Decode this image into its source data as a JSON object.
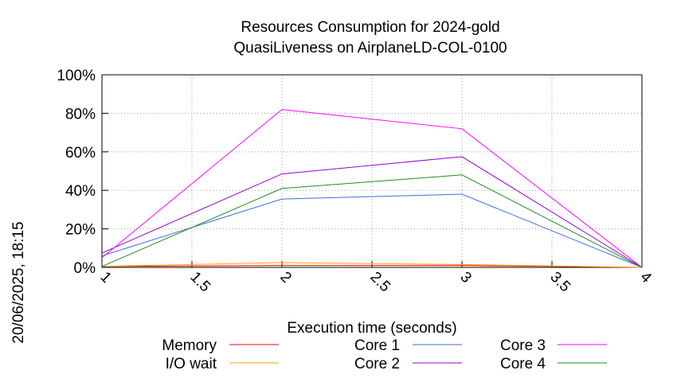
{
  "chart_data": {
    "type": "line",
    "title": "Resources Consumption for 2024-gold",
    "subtitle": "QuasiLiveness on AirplaneLD-COL-0100",
    "xlabel": "Execution time (seconds)",
    "ylabel": "",
    "side_label": "20/06/2025, 18:15",
    "xlim": [
      1,
      4
    ],
    "ylim": [
      0,
      100
    ],
    "x_ticks": [
      1,
      1.5,
      2,
      2.5,
      3,
      3.5,
      4
    ],
    "x_tick_labels": [
      "1",
      "1.5",
      "2",
      "2.5",
      "3",
      "3.5",
      "4"
    ],
    "y_ticks": [
      0,
      20,
      40,
      60,
      80,
      100
    ],
    "y_tick_labels": [
      "0%",
      "20%",
      "40%",
      "60%",
      "80%",
      "100%"
    ],
    "grid": true,
    "legend_position": "bottom",
    "x": [
      1,
      2,
      3,
      4
    ],
    "series": [
      {
        "name": "Memory",
        "color": "#ff0000",
        "values": [
          0.5,
          1.0,
          1.0,
          0
        ]
      },
      {
        "name": "I/O wait",
        "color": "#ffa500",
        "values": [
          0.5,
          2.5,
          1.5,
          0
        ]
      },
      {
        "name": "Core 1",
        "color": "#4169e1",
        "values": [
          6,
          35.5,
          38,
          0
        ]
      },
      {
        "name": "Core 2",
        "color": "#9400d3",
        "values": [
          7.5,
          48.5,
          57.5,
          0
        ]
      },
      {
        "name": "Core 3",
        "color": "#ff00ff",
        "values": [
          5,
          82,
          72,
          0
        ]
      },
      {
        "name": "Core 4",
        "color": "#228b22",
        "values": [
          0.5,
          41,
          48,
          0
        ]
      }
    ]
  }
}
